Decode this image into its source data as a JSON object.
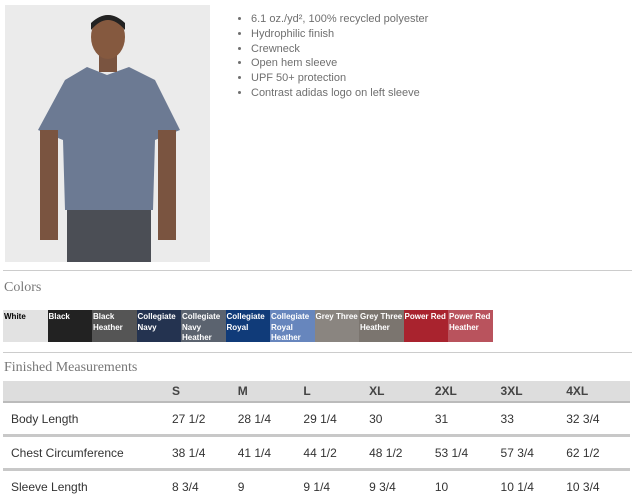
{
  "product": {
    "features": [
      "6.1 oz./yd², 100% recycled polyester",
      "Hydrophilic finish",
      "Crewneck",
      "Open hem sleeve",
      "UPF 50+ protection",
      "Contrast adidas logo on left sleeve"
    ]
  },
  "colors": {
    "title": "Colors",
    "swatches": [
      {
        "name": "White",
        "hex": "#e2e2e2",
        "text": "#000"
      },
      {
        "name": "Black",
        "hex": "#222222",
        "text": "#fff"
      },
      {
        "name": "Black Heather",
        "hex": "#555555",
        "text": "#fff"
      },
      {
        "name": "Collegiate Navy",
        "hex": "#243350",
        "text": "#fff"
      },
      {
        "name": "Collegiate Navy Heather",
        "hex": "#5b636f",
        "text": "#fff"
      },
      {
        "name": "Collegiate Royal",
        "hex": "#103b79",
        "text": "#fff"
      },
      {
        "name": "Collegiate Royal Heather",
        "hex": "#6786bd",
        "text": "#fff"
      },
      {
        "name": "Grey Three",
        "hex": "#8a8580",
        "text": "#fff"
      },
      {
        "name": "Grey Three Heather",
        "hex": "#7b756f",
        "text": "#fff"
      },
      {
        "name": "Power Red",
        "hex": "#a9232e",
        "text": "#fff"
      },
      {
        "name": "Power Red Heather",
        "hex": "#b9535d",
        "text": "#fff"
      }
    ]
  },
  "measurements": {
    "title": "Finished Measurements",
    "headers": [
      "",
      "S",
      "M",
      "L",
      "XL",
      "2XL",
      "3XL",
      "4XL"
    ],
    "rows": [
      [
        "Body Length",
        "27 1/2",
        "28 1/4",
        "29 1/4",
        "30",
        "31",
        "33",
        "32 3/4"
      ],
      [
        "Chest Circumference",
        "38 1/4",
        "41 1/4",
        "44 1/2",
        "48 1/2",
        "53 1/4",
        "57 3/4",
        "62 1/2"
      ],
      [
        "Sleeve Length",
        "8 3/4",
        "9",
        "9 1/4",
        "9 3/4",
        "10",
        "10 1/4",
        "10 3/4"
      ]
    ]
  }
}
